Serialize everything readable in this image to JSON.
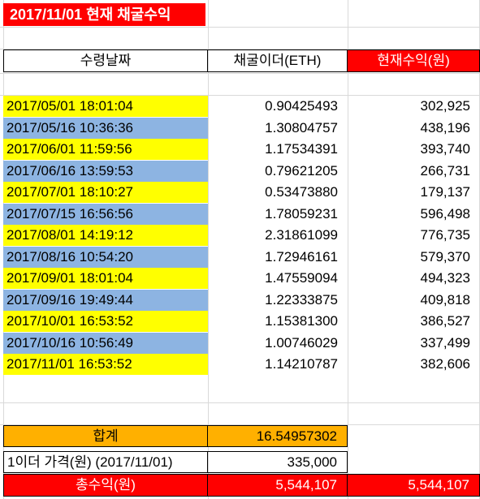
{
  "title": "2017/11/01 현재 채굴수익",
  "headers": {
    "date": "수령날짜",
    "ether": "채굴이더(ETH)",
    "profit": "현재수익(원)"
  },
  "rows": [
    {
      "date": "2017/05/01 18:01:04",
      "eth": "0.90425493",
      "krw": "302,925"
    },
    {
      "date": "2017/05/16 10:36:36",
      "eth": "1.30804757",
      "krw": "438,196"
    },
    {
      "date": "2017/06/01 11:59:56",
      "eth": "1.17534391",
      "krw": "393,740"
    },
    {
      "date": "2017/06/16 13:59:53",
      "eth": "0.79621205",
      "krw": "266,731"
    },
    {
      "date": "2017/07/01 18:10:27",
      "eth": "0.53473880",
      "krw": "179,137"
    },
    {
      "date": "2017/07/15 16:56:56",
      "eth": "1.78059231",
      "krw": "596,498"
    },
    {
      "date": "2017/08/01 14:19:12",
      "eth": "2.31861099",
      "krw": "776,735"
    },
    {
      "date": "2017/08/16 10:54:20",
      "eth": "1.72946161",
      "krw": "579,370"
    },
    {
      "date": "2017/09/01 18:01:04",
      "eth": "1.47559094",
      "krw": "494,323"
    },
    {
      "date": "2017/09/16 19:49:44",
      "eth": "1.22333875",
      "krw": "409,818"
    },
    {
      "date": "2017/10/01 16:53:52",
      "eth": "1.15381300",
      "krw": "386,527"
    },
    {
      "date": "2017/10/16 10:56:49",
      "eth": "1.00746029",
      "krw": "337,499"
    },
    {
      "date": "2017/11/01 16:53:52",
      "eth": "1.14210787",
      "krw": "382,606"
    }
  ],
  "summary": {
    "sum_label": "합계",
    "sum_value": "16.54957302",
    "price_label": "1이더 가격(원) (2017/11/01)",
    "price_value": "335,000",
    "total_label": "총수익(원)",
    "total_value": "5,544,107",
    "total_value_2": "5,544,107"
  },
  "colors": {
    "odd_row": "#ffff00",
    "even_row": "#8db4e2",
    "header_red": "#ff0000",
    "sum_orange": "#ffb000",
    "total_red": "#ff0000"
  }
}
